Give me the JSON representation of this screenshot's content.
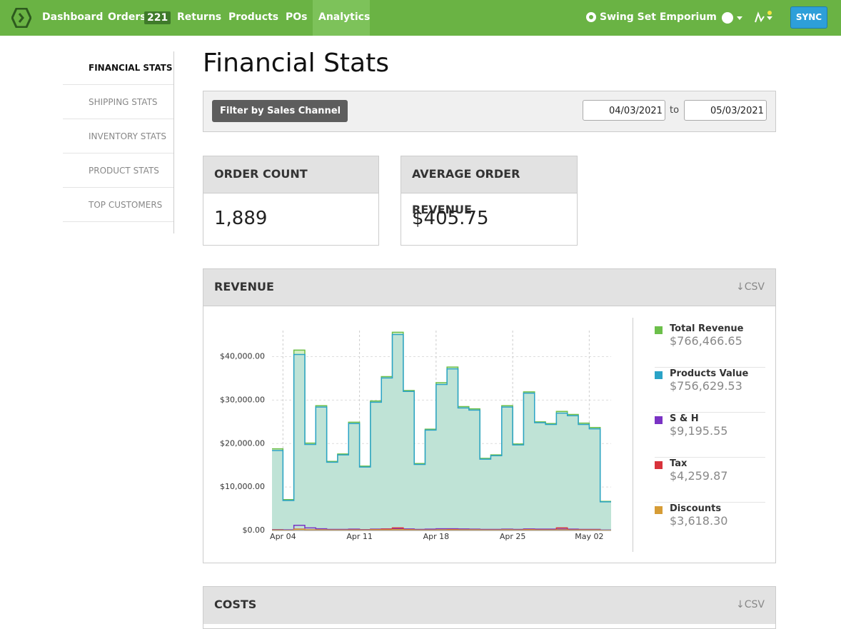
{
  "nav": {
    "items": [
      "Dashboard",
      "Orders",
      "Returns",
      "Products",
      "POs",
      "Analytics"
    ],
    "orders_badge": "221",
    "store": "Swing Set Emporium",
    "sync": "SYNC"
  },
  "sidebar": [
    "FINANCIAL STATS",
    "SHIPPING STATS",
    "INVENTORY STATS",
    "PRODUCT STATS",
    "TOP CUSTOMERS"
  ],
  "page_title": "Financial Stats",
  "filter": {
    "button": "Filter by Sales Channel",
    "date_from": "04/03/2021",
    "to": "to",
    "date_to": "05/03/2021"
  },
  "cards": [
    {
      "title": "ORDER COUNT",
      "value": "1,889"
    },
    {
      "title": "AVERAGE ORDER REVENUE",
      "value": "$405.75"
    }
  ],
  "revenue_panel": {
    "title": "REVENUE",
    "csv": "↓CSV"
  },
  "costs_panel": {
    "title": "COSTS",
    "csv": "↓CSV"
  },
  "chart_data": {
    "type": "step-area",
    "categories": [
      null,
      "Apr 04",
      null,
      null,
      null,
      null,
      null,
      null,
      "Apr 11",
      null,
      null,
      null,
      null,
      null,
      null,
      "Apr 18",
      null,
      null,
      null,
      null,
      null,
      null,
      "Apr 25",
      null,
      null,
      null,
      null,
      null,
      null,
      "May 02",
      null
    ],
    "ylim": [
      0,
      46000
    ],
    "yticks": [
      {
        "value": 0,
        "label": "$0.00"
      },
      {
        "value": 10000,
        "label": "$10,000.00"
      },
      {
        "value": 20000,
        "label": "$20,000.00"
      },
      {
        "value": 30000,
        "label": "$30,000.00"
      },
      {
        "value": 40000,
        "label": "$40,000.00"
      }
    ],
    "grid": true,
    "series": [
      {
        "name": "Total Revenue",
        "total": "$766,466.65",
        "color": "#6cbf4a",
        "values": [
          18800,
          7100,
          41500,
          20100,
          28700,
          15900,
          17600,
          24900,
          14800,
          29800,
          35400,
          45600,
          32200,
          15400,
          23300,
          34000,
          37600,
          28500,
          28000,
          16600,
          17400,
          28700,
          19900,
          31900,
          25000,
          24600,
          27400,
          26700,
          24700,
          23700,
          6700
        ]
      },
      {
        "name": "Products Value",
        "total": "$756,629.53",
        "color": "#2aa3c7",
        "values": [
          18400,
          6900,
          40500,
          19800,
          28400,
          15700,
          17400,
          24600,
          14600,
          29500,
          35100,
          45100,
          32000,
          15200,
          23100,
          33600,
          37200,
          28200,
          27700,
          16400,
          17200,
          28400,
          19700,
          31600,
          24800,
          24400,
          27000,
          26400,
          24400,
          23400,
          6600
        ]
      },
      {
        "name": "S & H",
        "total": "$9,195.55",
        "color": "#7a33c4",
        "values": [
          200,
          150,
          1200,
          600,
          400,
          250,
          250,
          300,
          200,
          300,
          350,
          400,
          350,
          250,
          300,
          400,
          400,
          350,
          300,
          250,
          250,
          300,
          250,
          350,
          300,
          300,
          300,
          300,
          250,
          250,
          100
        ]
      },
      {
        "name": "Tax",
        "total": "$4,259.87",
        "color": "#d8333b",
        "values": [
          100,
          50,
          300,
          150,
          150,
          100,
          100,
          150,
          100,
          200,
          300,
          600,
          200,
          100,
          100,
          150,
          200,
          150,
          150,
          100,
          100,
          150,
          100,
          200,
          150,
          150,
          600,
          150,
          150,
          150,
          50
        ]
      },
      {
        "name": "Discounts",
        "total": "$3,618.30",
        "color": "#d69c36",
        "values": [
          100,
          50,
          250,
          150,
          150,
          100,
          100,
          100,
          100,
          150,
          150,
          200,
          150,
          100,
          100,
          150,
          150,
          150,
          150,
          100,
          100,
          150,
          100,
          150,
          100,
          100,
          150,
          100,
          100,
          100,
          50
        ]
      }
    ]
  }
}
